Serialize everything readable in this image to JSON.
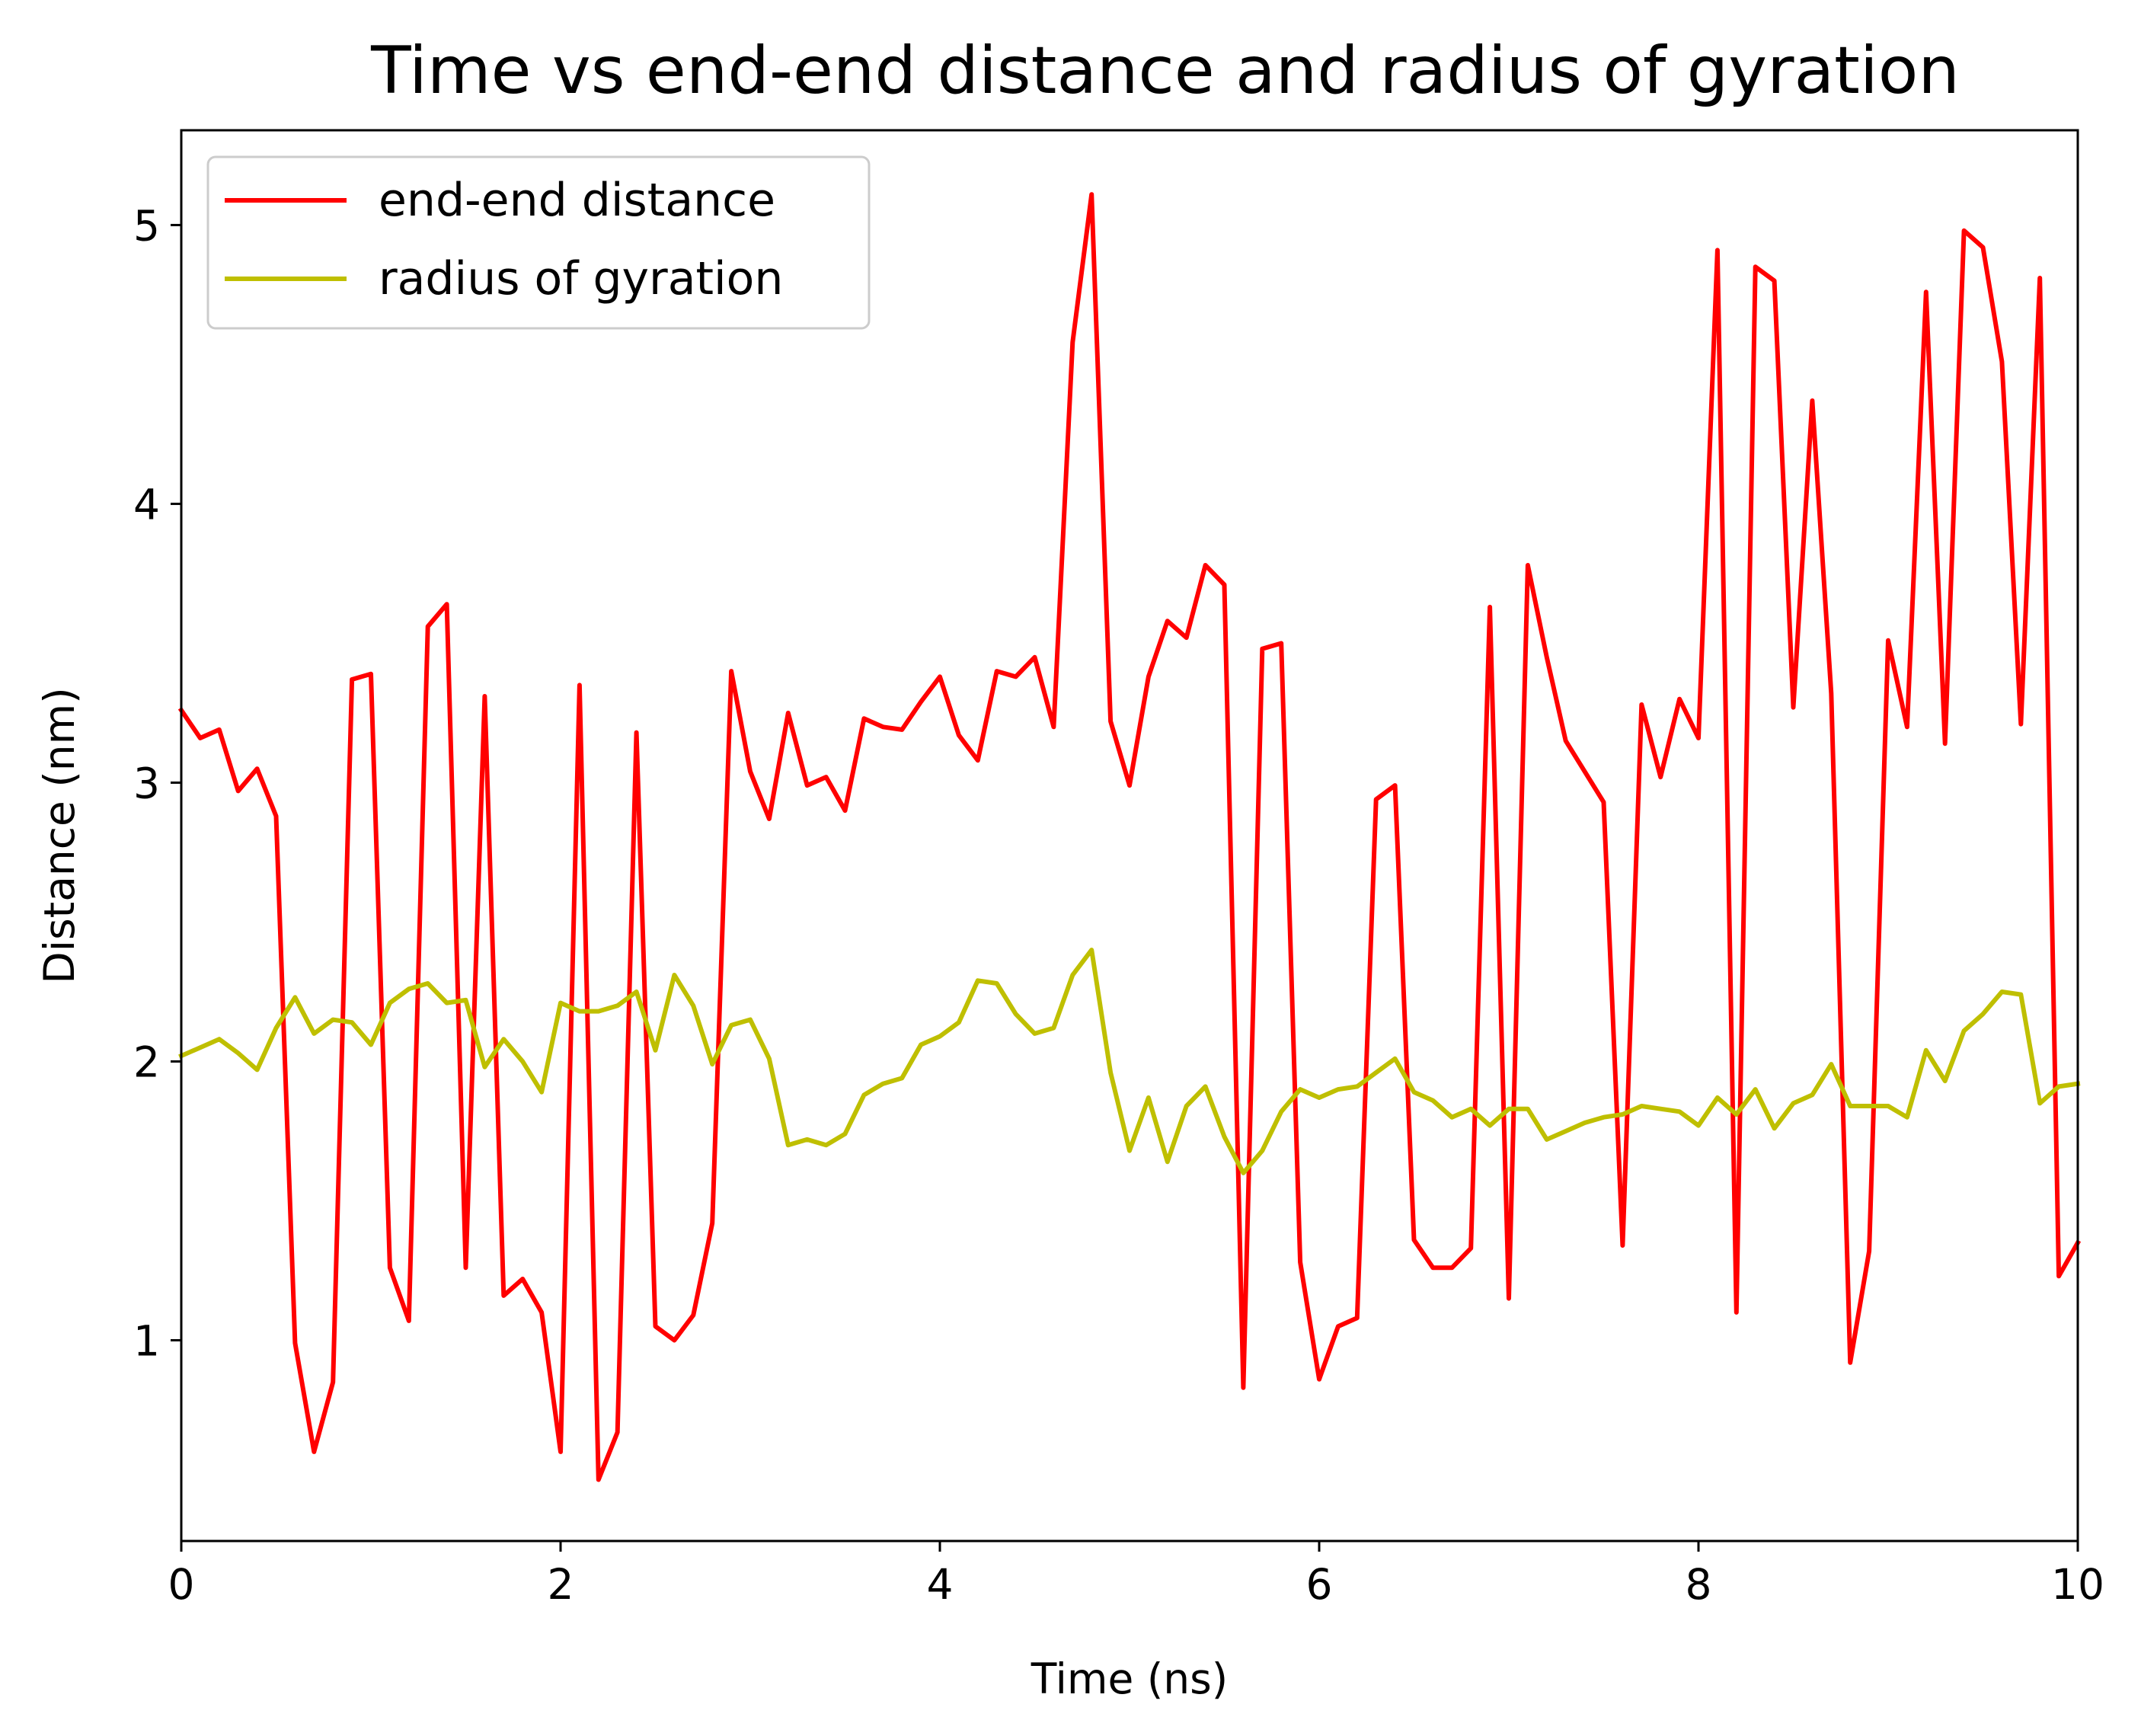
{
  "chart_data": {
    "type": "line",
    "title": "Time vs end-end distance and radius of gyration",
    "xlabel": "Time (ns)",
    "ylabel": "Distance (nm)",
    "xlim": [
      0,
      10
    ],
    "ylim": [
      0.28,
      5.34
    ],
    "xticks": [
      0,
      2,
      4,
      6,
      8,
      10
    ],
    "xtick_labels": [
      "0",
      "2",
      "4",
      "6",
      "8",
      "10"
    ],
    "yticks": [
      1,
      2,
      3,
      4,
      5
    ],
    "ytick_labels": [
      "1",
      "2",
      "3",
      "4",
      "5"
    ],
    "grid": false,
    "legend_position": "upper-left",
    "series": [
      {
        "name": "end-end distance",
        "color": "#ff0000",
        "x": [
          0.0,
          0.1,
          0.2,
          0.3,
          0.4,
          0.5,
          0.6,
          0.7,
          0.8,
          0.9,
          1.0,
          1.1,
          1.2,
          1.3,
          1.4,
          1.5,
          1.6,
          1.7,
          1.8,
          1.9,
          2.0,
          2.1,
          2.2,
          2.3,
          2.4,
          2.5,
          2.6,
          2.7,
          2.8,
          2.9,
          3.0,
          3.1,
          3.2,
          3.3,
          3.4,
          3.5,
          3.6,
          3.7,
          3.8,
          3.9,
          4.0,
          4.1,
          4.2,
          4.3,
          4.4,
          4.5,
          4.6,
          4.7,
          4.8,
          4.9,
          5.0,
          5.1,
          5.2,
          5.3,
          5.4,
          5.5,
          5.6,
          5.7,
          5.8,
          5.9,
          6.0,
          6.1,
          6.2,
          6.3,
          6.4,
          6.5,
          6.6,
          6.7,
          6.8,
          6.9,
          7.0,
          7.1,
          7.2,
          7.3,
          7.4,
          7.5,
          7.6,
          7.7,
          7.8,
          7.9,
          8.0,
          8.1,
          8.2,
          8.3,
          8.4,
          8.5,
          8.6,
          8.7,
          8.8,
          8.9,
          9.0,
          9.1,
          9.2,
          9.3,
          9.4,
          9.5,
          9.6,
          9.7,
          9.8,
          9.9,
          10.0
        ],
        "values": [
          3.26,
          3.16,
          3.19,
          2.97,
          3.05,
          2.88,
          0.99,
          0.6,
          0.85,
          3.37,
          3.39,
          1.26,
          1.07,
          3.56,
          3.64,
          1.26,
          3.31,
          1.16,
          1.22,
          1.1,
          0.6,
          3.35,
          0.5,
          0.67,
          3.18,
          1.05,
          1.0,
          1.09,
          1.42,
          3.4,
          3.04,
          2.87,
          3.25,
          2.99,
          3.02,
          2.9,
          3.23,
          3.2,
          3.19,
          3.29,
          3.38,
          3.17,
          3.08,
          3.4,
          3.38,
          3.45,
          3.2,
          4.58,
          5.11,
          3.22,
          2.99,
          3.38,
          3.58,
          3.52,
          3.78,
          3.71,
          0.83,
          3.48,
          3.5,
          1.28,
          0.86,
          1.05,
          1.08,
          2.94,
          2.99,
          1.36,
          1.26,
          1.26,
          1.33,
          3.63,
          1.15,
          3.78,
          3.45,
          3.15,
          3.04,
          2.93,
          1.34,
          3.28,
          3.02,
          3.3,
          3.16,
          4.91,
          1.1,
          4.85,
          4.8,
          3.27,
          4.37,
          3.32,
          0.92,
          1.32,
          3.51,
          3.2,
          4.76,
          3.14,
          4.98,
          4.92,
          4.51,
          3.21,
          4.81,
          1.23,
          1.35
        ]
      },
      {
        "name": "radius of gyration",
        "color": "#bfbf00",
        "x": [
          0.0,
          0.1,
          0.2,
          0.3,
          0.4,
          0.5,
          0.6,
          0.7,
          0.8,
          0.9,
          1.0,
          1.1,
          1.2,
          1.3,
          1.4,
          1.5,
          1.6,
          1.7,
          1.8,
          1.9,
          2.0,
          2.1,
          2.2,
          2.3,
          2.4,
          2.5,
          2.6,
          2.7,
          2.8,
          2.9,
          3.0,
          3.1,
          3.2,
          3.3,
          3.4,
          3.5,
          3.6,
          3.7,
          3.8,
          3.9,
          4.0,
          4.1,
          4.2,
          4.3,
          4.4,
          4.5,
          4.6,
          4.7,
          4.8,
          4.9,
          5.0,
          5.1,
          5.2,
          5.3,
          5.4,
          5.5,
          5.6,
          5.7,
          5.8,
          5.9,
          6.0,
          6.1,
          6.2,
          6.3,
          6.4,
          6.5,
          6.6,
          6.7,
          6.8,
          6.9,
          7.0,
          7.1,
          7.2,
          7.3,
          7.4,
          7.5,
          7.6,
          7.7,
          7.8,
          7.9,
          8.0,
          8.1,
          8.2,
          8.3,
          8.4,
          8.5,
          8.6,
          8.7,
          8.8,
          8.9,
          9.0,
          9.1,
          9.2,
          9.3,
          9.4,
          9.5,
          9.6,
          9.7,
          9.8,
          9.9,
          10.0
        ],
        "values": [
          2.02,
          2.05,
          2.08,
          2.03,
          1.97,
          2.12,
          2.23,
          2.1,
          2.15,
          2.14,
          2.06,
          2.21,
          2.26,
          2.28,
          2.21,
          2.22,
          1.98,
          2.08,
          2.0,
          1.89,
          2.21,
          2.18,
          2.18,
          2.2,
          2.25,
          2.04,
          2.31,
          2.2,
          1.99,
          2.13,
          2.15,
          2.01,
          1.7,
          1.72,
          1.7,
          1.74,
          1.88,
          1.92,
          1.94,
          2.06,
          2.09,
          2.14,
          2.29,
          2.28,
          2.17,
          2.1,
          2.12,
          2.31,
          2.4,
          1.96,
          1.68,
          1.87,
          1.64,
          1.84,
          1.91,
          1.73,
          1.6,
          1.68,
          1.82,
          1.9,
          1.87,
          1.9,
          1.91,
          1.96,
          2.01,
          1.89,
          1.86,
          1.8,
          1.83,
          1.77,
          1.83,
          1.83,
          1.72,
          1.75,
          1.78,
          1.8,
          1.81,
          1.84,
          1.83,
          1.82,
          1.77,
          1.87,
          1.81,
          1.9,
          1.76,
          1.85,
          1.88,
          1.99,
          1.84,
          1.84,
          1.84,
          1.8,
          2.04,
          1.93,
          2.11,
          2.17,
          2.25,
          2.24,
          1.85,
          1.91,
          1.92
        ]
      }
    ]
  }
}
